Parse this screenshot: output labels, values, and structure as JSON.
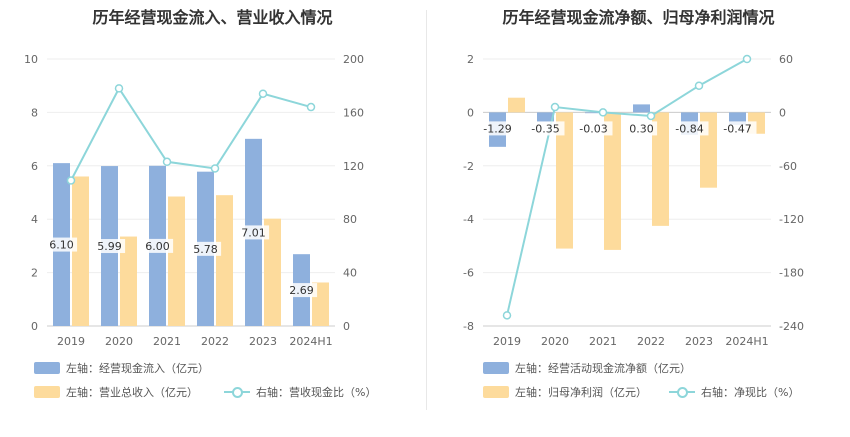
{
  "colors": {
    "bar_primary": "#8eb0dd",
    "bar_secondary": "#fddb9c",
    "line": "#8dd6da",
    "grid": "#eeeeee"
  },
  "chart_data": [
    {
      "type": "bar",
      "title": "历年经营现金流入、营业收入情况",
      "categories": [
        "2019",
        "2020",
        "2021",
        "2022",
        "2023",
        "2024H1"
      ],
      "y_left": {
        "ticks": [
          "0",
          "2",
          "4",
          "6",
          "8",
          "10"
        ],
        "range": [
          0,
          10
        ]
      },
      "y_right": {
        "ticks": [
          "0",
          "40",
          "80",
          "120",
          "160",
          "200"
        ],
        "range": [
          0,
          200
        ]
      },
      "series": [
        {
          "name": "左轴：经营现金流入（亿元）",
          "type": "bar",
          "axis": "left",
          "color": "#8eb0dd",
          "values": [
            6.1,
            5.99,
            6.0,
            5.78,
            7.01,
            2.69
          ],
          "labels": [
            "6.10",
            "5.99",
            "6.00",
            "5.78",
            "7.01",
            "2.69"
          ]
        },
        {
          "name": "左轴：营业总收入（亿元）",
          "type": "bar",
          "axis": "left",
          "color": "#fddb9c",
          "values": [
            5.6,
            3.35,
            4.85,
            4.9,
            4.02,
            1.63
          ]
        },
        {
          "name": "右轴：营收现金比（%）",
          "type": "line",
          "axis": "right",
          "color": "#8dd6da",
          "values": [
            109,
            178,
            123,
            118,
            174,
            164
          ]
        }
      ],
      "legend": [
        "左轴：经营现金流入（亿元）",
        "左轴：营业总收入（亿元）",
        "右轴：营收现金比（%）"
      ]
    },
    {
      "type": "bar",
      "title": "历年经营现金流净额、归母净利润情况",
      "categories": [
        "2019",
        "2020",
        "2021",
        "2022",
        "2023",
        "2024H1"
      ],
      "y_left": {
        "ticks": [
          "-8",
          "-6",
          "-4",
          "-2",
          "0",
          "2"
        ],
        "range": [
          -8,
          2
        ]
      },
      "y_right": {
        "ticks": [
          "-240",
          "-180",
          "-120",
          "-60",
          "0",
          "60"
        ],
        "range": [
          -240,
          60
        ]
      },
      "series": [
        {
          "name": "左轴：经营活动现金流净额（亿元）",
          "type": "bar",
          "axis": "left",
          "color": "#8eb0dd",
          "values": [
            -1.29,
            -0.35,
            -0.03,
            0.3,
            -0.84,
            -0.47
          ],
          "labels": [
            "-1.29",
            "-0.35",
            "-0.03",
            "0.30",
            "-0.84",
            "-0.47"
          ]
        },
        {
          "name": "左轴：归母净利润（亿元）",
          "type": "bar",
          "axis": "left",
          "color": "#fddb9c",
          "values": [
            0.55,
            -5.1,
            -5.15,
            -4.25,
            -2.82,
            -0.8
          ]
        },
        {
          "name": "右轴：净现比（%）",
          "type": "line",
          "axis": "right",
          "color": "#8dd6da",
          "values": [
            -228,
            6,
            0,
            -4,
            30,
            60
          ]
        }
      ],
      "legend": [
        "左轴：经营活动现金流净额（亿元）",
        "左轴：归母净利润（亿元）",
        "右轴：净现比（%）"
      ]
    }
  ]
}
